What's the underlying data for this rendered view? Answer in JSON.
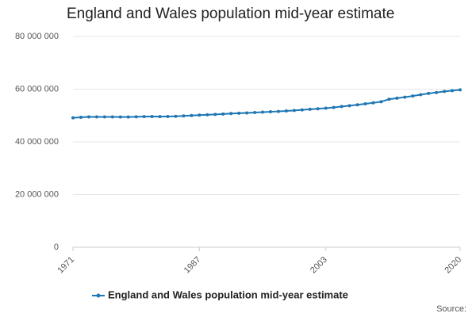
{
  "chart_data": {
    "type": "line",
    "title": "England and Wales population mid-year estimate",
    "source": "Source:",
    "x": [
      1971,
      1972,
      1973,
      1974,
      1975,
      1976,
      1977,
      1978,
      1979,
      1980,
      1981,
      1982,
      1983,
      1984,
      1985,
      1986,
      1987,
      1988,
      1989,
      1990,
      1991,
      1992,
      1993,
      1994,
      1995,
      1996,
      1997,
      1998,
      1999,
      2000,
      2001,
      2002,
      2003,
      2004,
      2005,
      2006,
      2007,
      2008,
      2009,
      2010,
      2011,
      2012,
      2013,
      2014,
      2015,
      2016,
      2017,
      2018,
      2019,
      2020
    ],
    "series": [
      {
        "name": "England and Wales population mid-year estimate",
        "color": "#1f77b4",
        "values": [
          49150000,
          49330000,
          49460000,
          49470000,
          49470000,
          49460000,
          49440000,
          49440000,
          49510000,
          49600000,
          49630000,
          49580000,
          49620000,
          49710000,
          49860000,
          50010000,
          50160000,
          50270000,
          50410000,
          50560000,
          50750000,
          50880000,
          50990000,
          51120000,
          51270000,
          51410000,
          51560000,
          51720000,
          51930000,
          52140000,
          52360000,
          52570000,
          52790000,
          53050000,
          53420000,
          53730000,
          54070000,
          54450000,
          54810000,
          55240000,
          56170000,
          56570000,
          56950000,
          57410000,
          57890000,
          58380000,
          58740000,
          59120000,
          59440000,
          59720000
        ]
      }
    ],
    "xlim": [
      1971,
      2020
    ],
    "xticks": [
      1971,
      1987,
      2003,
      2020
    ],
    "ylim": [
      0,
      80000000
    ],
    "yticks": [
      0,
      {
        "value": 20000000,
        "label": "20 000 000"
      },
      {
        "value": 40000000,
        "label": "40 000 000"
      },
      {
        "value": 60000000,
        "label": "60 000 000"
      },
      {
        "value": 80000000,
        "label": "80 000 000"
      }
    ],
    "grid": true,
    "legend": "bottom"
  }
}
